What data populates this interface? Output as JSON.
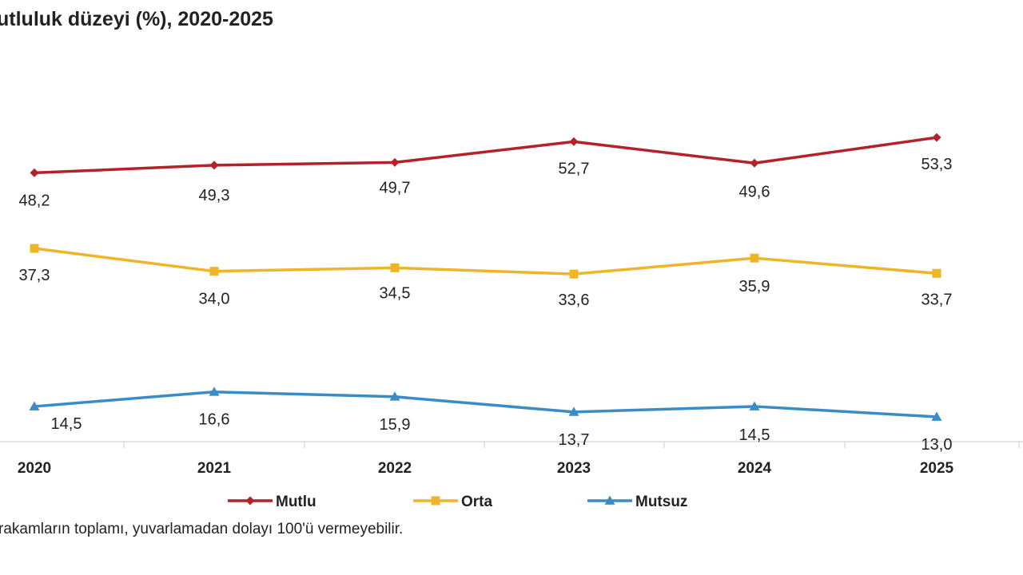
{
  "chart_data": {
    "type": "line",
    "title": "utluluk düzeyi (%), 2020-2025",
    "categories": [
      "2020",
      "2021",
      "2022",
      "2023",
      "2024",
      "2025"
    ],
    "series": [
      {
        "name": "Mutlu",
        "values": [
          48.2,
          49.3,
          49.7,
          52.7,
          49.6,
          53.3
        ],
        "labels": [
          "48,2",
          "49,3",
          "49,7",
          "52,7",
          "49,6",
          "53,3"
        ],
        "color": "#b22228",
        "marker": "diamond"
      },
      {
        "name": "Orta",
        "values": [
          37.3,
          34.0,
          34.5,
          33.6,
          35.9,
          33.7
        ],
        "labels": [
          "37,3",
          "34,0",
          "34,5",
          "33,6",
          "35,9",
          "33,7"
        ],
        "color": "#f0b428",
        "marker": "square"
      },
      {
        "name": "Mutsuz",
        "values": [
          14.5,
          16.6,
          15.9,
          13.7,
          14.5,
          13.0
        ],
        "labels": [
          "14,5",
          "16,6",
          "15,9",
          "13,7",
          "14,5",
          "13,0"
        ],
        "color": "#3a8cc6",
        "marker": "triangle"
      }
    ],
    "legend_position": "bottom",
    "grid": false
  },
  "footnote": "rakamların toplamı, yuvarlamadan dolayı 100'ü vermeyebilir."
}
